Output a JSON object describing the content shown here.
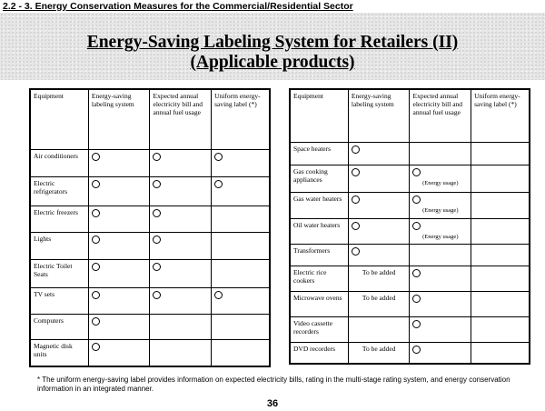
{
  "header": {
    "section": "2.2 - 3. Energy Conservation Measures for the Commercial/Residential Sector",
    "title_line1": "Energy-Saving Labeling System for Retailers (II)",
    "title_line2": "(Applicable products)"
  },
  "columns": {
    "equipment": "Equipment",
    "labeling": "Energy-saving labeling system",
    "expected": "Expected annual electricity bill and annual fuel usage",
    "uniform": "Uniform energy-saving label (*)"
  },
  "left_table": {
    "rows": [
      {
        "name": "Air conditioners",
        "labeling": "circle",
        "expected": "circle",
        "uniform": "circle"
      },
      {
        "name": "Electric refrigerators",
        "labeling": "circle",
        "expected": "circle",
        "uniform": "circle"
      },
      {
        "name": "Electric freezers",
        "labeling": "circle",
        "expected": "circle",
        "uniform": ""
      },
      {
        "name": "Lights",
        "labeling": "circle",
        "expected": "circle",
        "uniform": ""
      },
      {
        "name": "Electric Toilet Seats",
        "labeling": "circle",
        "expected": "circle",
        "uniform": ""
      },
      {
        "name": "TV sets",
        "labeling": "circle",
        "expected": "circle",
        "uniform": "circle"
      },
      {
        "name": "Computers",
        "labeling": "circle",
        "expected": "",
        "uniform": ""
      },
      {
        "name": "Magnetic disk units",
        "labeling": "circle",
        "expected": "",
        "uniform": ""
      }
    ]
  },
  "right_table": {
    "energy_usage_note": "(Energy usage)",
    "to_be_added": "To be added",
    "rows": [
      {
        "name": "Space heaters",
        "labeling": "circle",
        "expected": "",
        "uniform": ""
      },
      {
        "name": "Gas cooking appliances",
        "labeling": "circle",
        "expected": "circle-note",
        "uniform": ""
      },
      {
        "name": "Gas water heaters",
        "labeling": "circle",
        "expected": "circle-note",
        "uniform": ""
      },
      {
        "name": "Oil water heaters",
        "labeling": "circle",
        "expected": "circle-note",
        "uniform": ""
      },
      {
        "name": "Transformers",
        "labeling": "circle",
        "expected": "",
        "uniform": ""
      },
      {
        "name": "Electric rice cookers",
        "labeling": "tba",
        "expected": "circle",
        "uniform": ""
      },
      {
        "name": "Microwave ovens",
        "labeling": "tba",
        "expected": "circle",
        "uniform": ""
      },
      {
        "name": "Video cassette recorders",
        "labeling": "",
        "expected": "circle",
        "uniform": ""
      },
      {
        "name": "DVD recorders",
        "labeling": "tba",
        "expected": "circle",
        "uniform": ""
      }
    ]
  },
  "footnote": "* The uniform energy-saving label provides information on expected electricity bills, rating in the multi-stage rating system, and energy conservation information in an integrated manner.",
  "page_number": "36"
}
